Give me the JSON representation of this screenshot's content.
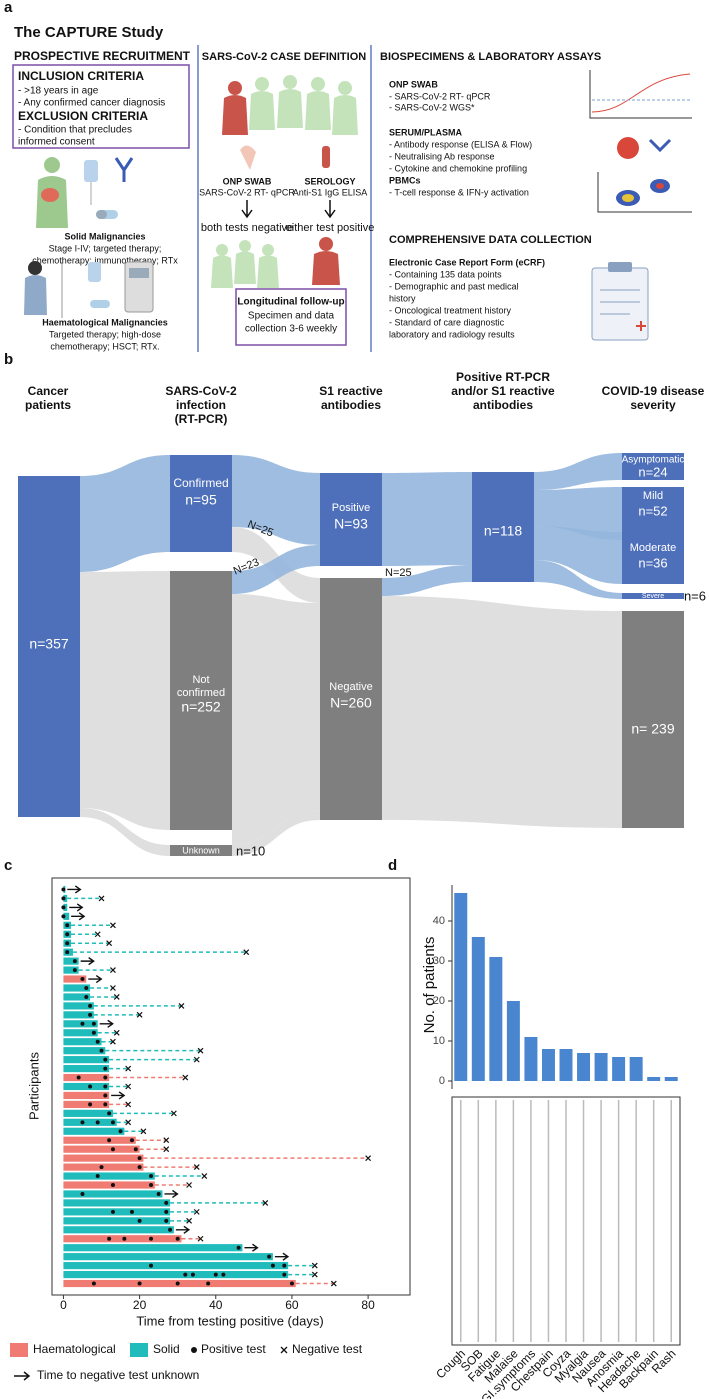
{
  "panel_a": {
    "label": "a",
    "title": "The CAPTURE Study",
    "recruitment": {
      "heading": "PROSPECTIVE RECRUITMENT",
      "inclusion_heading": "INCLUSION CRITERIA",
      "inclusion": [
        "- >18 years in age",
        "- Any confirmed cancer diagnosis"
      ],
      "exclusion_heading": "EXCLUSION CRITERIA",
      "exclusion": [
        "- Condition that precludes",
        "informed consent"
      ],
      "solid_title": "Solid Malignancies",
      "solid": [
        "Stage I-IV; targeted therapy;",
        "chemotherapy;  immunotherapy; RTx"
      ],
      "haem_title": "Haematological Malignancies",
      "haem": [
        "Targeted therapy; high-dose",
        "chemotherapy; HSCT; RTx."
      ]
    },
    "case_definition": {
      "heading": "SARS-CoV-2 CASE DEFINITION",
      "swab_title": "ONP SWAB",
      "swab_text": "SARS-CoV-2 RT- qPCR",
      "serology_title": "SEROLOGY",
      "serology_text": "Anti-S1 IgG ELISA",
      "negative": "both tests negative",
      "positive": "either test positive",
      "followup_title": "Longitudinal follow-up",
      "followup": [
        "Specimen and data",
        "collection 3-6 weekly"
      ]
    },
    "biospecimens": {
      "heading": "BIOSPECIMENS & LABORATORY ASSAYS",
      "swab_title": "ONP SWAB",
      "swab": [
        "- SARS-CoV-2 RT- qPCR",
        "- SARS-CoV-2 WGS*"
      ],
      "serum_title": "SERUM/PLASMA",
      "serum": [
        "- Antibody response (ELISA & Flow)",
        "- Neutralising Ab response",
        "- Cytokine and chemokine profiling"
      ],
      "pbmc_title": "PBMCs",
      "pbmc": [
        "- T-cell response & IFN-y activation"
      ],
      "data_heading": "COMPREHENSIVE DATA COLLECTION",
      "ecrf_title": "Electronic Case Report Form (eCRF)",
      "ecrf": [
        "- Containing 135 data points",
        "- Demographic and past medical",
        "history",
        "- Oncological treatment history",
        "- Standard of care diagnostic",
        "laboratory and radiology results"
      ]
    }
  },
  "panel_b": {
    "label": "b",
    "headers": [
      [
        "Cancer",
        "patients"
      ],
      [
        "SARS-CoV-2",
        "infection",
        "(RT-PCR)"
      ],
      [
        "S1 reactive",
        "antibodies"
      ],
      [
        "Positive RT-PCR",
        "and/or S1 reactive",
        "antibodies"
      ],
      [
        "COVID-19 disease",
        "severity"
      ]
    ],
    "nodes": {
      "cancer_n": "n=357",
      "confirmed": "Confirmed",
      "confirmed_n": "n=95",
      "confirmed_to_negative": "N=25",
      "not_confirmed_to_positive": "N=23",
      "not_confirmed": [
        "Not",
        "confirmed"
      ],
      "not_confirmed_n": "n=252",
      "unknown": "Unknown",
      "unknown_n": "n=10",
      "positive": "Positive",
      "positive_n": "N=93",
      "negative": "Negative",
      "negative_n": "N=260",
      "negative_to_combined": "N=25",
      "combined_n": "n=118",
      "asymptomatic": "Asymptomatic",
      "asymptomatic_n": "n=24",
      "mild": "Mild",
      "mild_n": "n=52",
      "moderate": "Moderate",
      "moderate_n": "n=36",
      "severe": "Severe",
      "severe_n": "n=6",
      "none_n": "n= 239"
    }
  },
  "chart_data": [
    {
      "type": "swimmer",
      "panel_label": "c",
      "x_label": "Time from testing positive (days)",
      "y_label": "Participants",
      "xlim": [
        -3,
        91
      ],
      "xticks": [
        0,
        20,
        40,
        60,
        80
      ],
      "groups": [
        {
          "name": "Haematological",
          "color": "#f07b73"
        },
        {
          "name": "Solid",
          "color": "#1fbcbb"
        }
      ],
      "legend": {
        "positive": "Positive test",
        "negative": "Negative test",
        "unknown": "Time to negative test unknown"
      },
      "rows": [
        {
          "group": 1,
          "duration": 0.5,
          "negative_test": null,
          "positive_tests": [
            0
          ]
        },
        {
          "group": 1,
          "duration": 1,
          "negative_test": 10,
          "positive_tests": [
            0
          ]
        },
        {
          "group": 1,
          "duration": 1,
          "negative_test": null,
          "positive_tests": [
            0
          ]
        },
        {
          "group": 1,
          "duration": 1.5,
          "negative_test": null,
          "positive_tests": [
            0
          ]
        },
        {
          "group": 1,
          "duration": 2,
          "negative_test": 13,
          "positive_tests": [
            1
          ]
        },
        {
          "group": 1,
          "duration": 2,
          "negative_test": 9,
          "positive_tests": [
            1
          ]
        },
        {
          "group": 1,
          "duration": 2,
          "negative_test": 12,
          "positive_tests": [
            1
          ]
        },
        {
          "group": 1,
          "duration": 2.5,
          "negative_test": 48,
          "positive_tests": [
            1
          ]
        },
        {
          "group": 1,
          "duration": 4,
          "negative_test": null,
          "positive_tests": [
            3
          ]
        },
        {
          "group": 1,
          "duration": 4,
          "negative_test": 13,
          "positive_tests": [
            3
          ]
        },
        {
          "group": 0,
          "duration": 6,
          "negative_test": null,
          "positive_tests": [
            5
          ]
        },
        {
          "group": 1,
          "duration": 7,
          "negative_test": 13,
          "positive_tests": [
            6
          ]
        },
        {
          "group": 1,
          "duration": 7,
          "negative_test": 14,
          "positive_tests": [
            6
          ]
        },
        {
          "group": 1,
          "duration": 8,
          "negative_test": 31,
          "positive_tests": [
            7
          ]
        },
        {
          "group": 1,
          "duration": 8,
          "negative_test": 20,
          "positive_tests": [
            7
          ]
        },
        {
          "group": 1,
          "duration": 9,
          "negative_test": null,
          "positive_tests": [
            5,
            8
          ]
        },
        {
          "group": 1,
          "duration": 9,
          "negative_test": 14,
          "positive_tests": [
            8
          ]
        },
        {
          "group": 1,
          "duration": 10,
          "negative_test": 13,
          "positive_tests": [
            9
          ]
        },
        {
          "group": 1,
          "duration": 11,
          "negative_test": 36,
          "positive_tests": [
            10
          ]
        },
        {
          "group": 1,
          "duration": 12,
          "negative_test": 35,
          "positive_tests": [
            11
          ]
        },
        {
          "group": 1,
          "duration": 12,
          "negative_test": 17,
          "positive_tests": [
            11
          ]
        },
        {
          "group": 0,
          "duration": 12,
          "negative_test": 32,
          "positive_tests": [
            4,
            11
          ]
        },
        {
          "group": 1,
          "duration": 12,
          "negative_test": 17,
          "positive_tests": [
            7,
            11
          ]
        },
        {
          "group": 0,
          "duration": 12,
          "negative_test": null,
          "positive_tests": [
            11
          ]
        },
        {
          "group": 0,
          "duration": 12,
          "negative_test": 17,
          "positive_tests": [
            7,
            11
          ]
        },
        {
          "group": 1,
          "duration": 13,
          "negative_test": 29,
          "positive_tests": [
            12
          ]
        },
        {
          "group": 1,
          "duration": 14,
          "negative_test": 17,
          "positive_tests": [
            5,
            9,
            13
          ]
        },
        {
          "group": 1,
          "duration": 16,
          "negative_test": 21,
          "positive_tests": [
            15
          ]
        },
        {
          "group": 0,
          "duration": 19,
          "negative_test": 27,
          "positive_tests": [
            12,
            18
          ]
        },
        {
          "group": 0,
          "duration": 20,
          "negative_test": 27,
          "positive_tests": [
            13,
            19
          ]
        },
        {
          "group": 0,
          "duration": 21,
          "negative_test": 80,
          "positive_tests": [
            20
          ]
        },
        {
          "group": 0,
          "duration": 21,
          "negative_test": 35,
          "positive_tests": [
            10,
            20
          ]
        },
        {
          "group": 1,
          "duration": 24,
          "negative_test": 37,
          "positive_tests": [
            9,
            23
          ]
        },
        {
          "group": 0,
          "duration": 24,
          "negative_test": 33,
          "positive_tests": [
            13,
            23
          ]
        },
        {
          "group": 1,
          "duration": 26,
          "negative_test": null,
          "positive_tests": [
            5,
            25
          ]
        },
        {
          "group": 1,
          "duration": 28,
          "negative_test": 53,
          "positive_tests": [
            27
          ]
        },
        {
          "group": 1,
          "duration": 28,
          "negative_test": 35,
          "positive_tests": [
            13,
            18,
            27
          ]
        },
        {
          "group": 1,
          "duration": 28,
          "negative_test": 33,
          "positive_tests": [
            20,
            27
          ]
        },
        {
          "group": 1,
          "duration": 29,
          "negative_test": null,
          "positive_tests": [
            28
          ]
        },
        {
          "group": 0,
          "duration": 31,
          "negative_test": 36,
          "positive_tests": [
            12,
            16,
            23,
            30
          ]
        },
        {
          "group": 1,
          "duration": 47,
          "negative_test": null,
          "positive_tests": [
            46
          ]
        },
        {
          "group": 1,
          "duration": 55,
          "negative_test": null,
          "positive_tests": [
            54
          ]
        },
        {
          "group": 1,
          "duration": 59,
          "negative_test": 66,
          "positive_tests": [
            23,
            55,
            58
          ]
        },
        {
          "group": 1,
          "duration": 59,
          "negative_test": 66,
          "positive_tests": [
            32,
            34,
            40,
            42,
            58
          ]
        },
        {
          "group": 0,
          "duration": 61,
          "negative_test": 71,
          "positive_tests": [
            8,
            20,
            30,
            38,
            60
          ]
        }
      ]
    },
    {
      "type": "bar",
      "panel_label": "d",
      "y_label": "No. of patients",
      "categories": [
        "Cough",
        "SOB",
        "Fatigue",
        "Malaise",
        "GI.symptoms",
        "Chestpain",
        "Coyza",
        "Myalgia",
        "Nausea",
        "Anosmia",
        "Headache",
        "Backpain",
        "Rash"
      ],
      "values": [
        47,
        36,
        31,
        20,
        11,
        8,
        8,
        7,
        7,
        6,
        6,
        1,
        1
      ],
      "color": "#4a86d0",
      "ylim": [
        -2,
        49
      ],
      "yticks": [
        0,
        10,
        20,
        30,
        40
      ]
    }
  ]
}
